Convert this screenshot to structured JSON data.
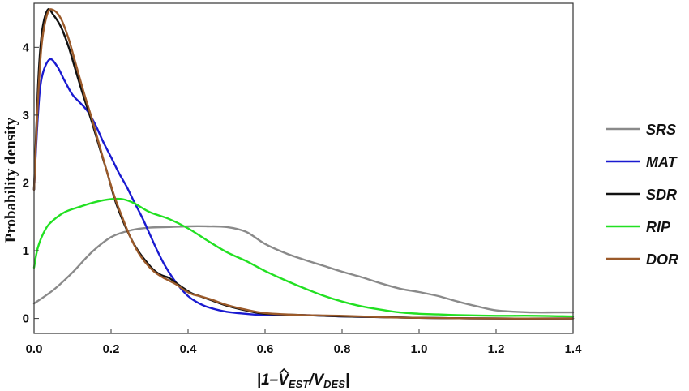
{
  "chart_data": {
    "type": "line",
    "title": "",
    "ylabel": "Probability density",
    "xlabel": {
      "prefix": "|1–",
      "hat_var": "V",
      "hat_sub": "EST",
      "slash": "/V",
      "den_sub": "DES",
      "suffix": "|"
    },
    "xlim": [
      0,
      1.4
    ],
    "ylim": [
      -0.22,
      4.65
    ],
    "x_ticks": [
      0.0,
      0.2,
      0.4,
      0.6,
      0.8,
      1.0,
      1.2,
      1.4
    ],
    "x_tick_labels": [
      "0.0",
      "0.2",
      "0.4",
      "0.6",
      "0.8",
      "1.0",
      "1.2",
      "1.4"
    ],
    "y_ticks": [
      0,
      1,
      2,
      3,
      4
    ],
    "y_tick_labels": [
      "0",
      "1",
      "2",
      "3",
      "4"
    ],
    "grid": false,
    "legend_position": "right",
    "series": [
      {
        "name": "SRS",
        "color": "#8a8a8a",
        "points": [
          [
            0,
            0.22
          ],
          [
            0.05,
            0.42
          ],
          [
            0.1,
            0.68
          ],
          [
            0.15,
            0.98
          ],
          [
            0.2,
            1.2
          ],
          [
            0.25,
            1.3
          ],
          [
            0.3,
            1.34
          ],
          [
            0.35,
            1.35
          ],
          [
            0.4,
            1.36
          ],
          [
            0.45,
            1.36
          ],
          [
            0.5,
            1.35
          ],
          [
            0.55,
            1.28
          ],
          [
            0.6,
            1.1
          ],
          [
            0.65,
            0.97
          ],
          [
            0.7,
            0.87
          ],
          [
            0.75,
            0.78
          ],
          [
            0.8,
            0.69
          ],
          [
            0.85,
            0.61
          ],
          [
            0.9,
            0.52
          ],
          [
            0.95,
            0.44
          ],
          [
            1.0,
            0.39
          ],
          [
            1.05,
            0.33
          ],
          [
            1.1,
            0.25
          ],
          [
            1.15,
            0.18
          ],
          [
            1.2,
            0.12
          ],
          [
            1.25,
            0.1
          ],
          [
            1.3,
            0.09
          ],
          [
            1.35,
            0.09
          ],
          [
            1.4,
            0.09
          ]
        ]
      },
      {
        "name": "MAT",
        "color": "#1a1ad0",
        "points": [
          [
            0,
            1.9
          ],
          [
            0.01,
            3.0
          ],
          [
            0.02,
            3.55
          ],
          [
            0.04,
            3.82
          ],
          [
            0.06,
            3.72
          ],
          [
            0.08,
            3.5
          ],
          [
            0.1,
            3.3
          ],
          [
            0.12,
            3.18
          ],
          [
            0.14,
            3.05
          ],
          [
            0.16,
            2.85
          ],
          [
            0.18,
            2.6
          ],
          [
            0.2,
            2.38
          ],
          [
            0.22,
            2.15
          ],
          [
            0.24,
            1.95
          ],
          [
            0.26,
            1.72
          ],
          [
            0.28,
            1.5
          ],
          [
            0.3,
            1.25
          ],
          [
            0.32,
            1.0
          ],
          [
            0.34,
            0.78
          ],
          [
            0.36,
            0.6
          ],
          [
            0.38,
            0.45
          ],
          [
            0.4,
            0.33
          ],
          [
            0.42,
            0.25
          ],
          [
            0.45,
            0.17
          ],
          [
            0.5,
            0.1
          ],
          [
            0.55,
            0.07
          ],
          [
            0.6,
            0.05
          ],
          [
            0.7,
            0.05
          ],
          [
            0.8,
            0.03
          ],
          [
            0.9,
            0.02
          ],
          [
            1.0,
            0.01
          ],
          [
            1.2,
            0.0
          ],
          [
            1.4,
            0.0
          ]
        ]
      },
      {
        "name": "SDR",
        "color": "#111111",
        "points": [
          [
            0,
            1.9
          ],
          [
            0.01,
            3.4
          ],
          [
            0.02,
            4.2
          ],
          [
            0.035,
            4.55
          ],
          [
            0.05,
            4.48
          ],
          [
            0.07,
            4.3
          ],
          [
            0.09,
            4.0
          ],
          [
            0.11,
            3.62
          ],
          [
            0.13,
            3.25
          ],
          [
            0.15,
            2.9
          ],
          [
            0.17,
            2.52
          ],
          [
            0.19,
            2.15
          ],
          [
            0.21,
            1.75
          ],
          [
            0.23,
            1.45
          ],
          [
            0.25,
            1.2
          ],
          [
            0.27,
            1.0
          ],
          [
            0.29,
            0.85
          ],
          [
            0.31,
            0.72
          ],
          [
            0.33,
            0.64
          ],
          [
            0.35,
            0.6
          ],
          [
            0.37,
            0.52
          ],
          [
            0.39,
            0.44
          ],
          [
            0.41,
            0.37
          ],
          [
            0.43,
            0.33
          ],
          [
            0.46,
            0.27
          ],
          [
            0.5,
            0.19
          ],
          [
            0.55,
            0.12
          ],
          [
            0.6,
            0.07
          ],
          [
            0.7,
            0.05
          ],
          [
            0.8,
            0.03
          ],
          [
            0.9,
            0.02
          ],
          [
            1.0,
            0.01
          ],
          [
            1.2,
            0.0
          ],
          [
            1.4,
            0.0
          ]
        ]
      },
      {
        "name": "RIP",
        "color": "#22e022",
        "points": [
          [
            0,
            0.75
          ],
          [
            0.01,
            1.05
          ],
          [
            0.03,
            1.32
          ],
          [
            0.05,
            1.45
          ],
          [
            0.08,
            1.57
          ],
          [
            0.12,
            1.65
          ],
          [
            0.16,
            1.72
          ],
          [
            0.2,
            1.76
          ],
          [
            0.23,
            1.76
          ],
          [
            0.26,
            1.7
          ],
          [
            0.3,
            1.57
          ],
          [
            0.35,
            1.47
          ],
          [
            0.4,
            1.33
          ],
          [
            0.45,
            1.15
          ],
          [
            0.5,
            0.98
          ],
          [
            0.55,
            0.85
          ],
          [
            0.6,
            0.7
          ],
          [
            0.65,
            0.57
          ],
          [
            0.7,
            0.45
          ],
          [
            0.75,
            0.34
          ],
          [
            0.8,
            0.25
          ],
          [
            0.85,
            0.18
          ],
          [
            0.9,
            0.13
          ],
          [
            0.95,
            0.09
          ],
          [
            1.0,
            0.07
          ],
          [
            1.05,
            0.06
          ],
          [
            1.1,
            0.05
          ],
          [
            1.2,
            0.04
          ],
          [
            1.3,
            0.04
          ],
          [
            1.4,
            0.03
          ]
        ]
      },
      {
        "name": "DOR",
        "color": "#9b5a2a",
        "points": [
          [
            0,
            1.9
          ],
          [
            0.01,
            3.2
          ],
          [
            0.02,
            4.05
          ],
          [
            0.035,
            4.5
          ],
          [
            0.05,
            4.55
          ],
          [
            0.07,
            4.42
          ],
          [
            0.09,
            4.12
          ],
          [
            0.11,
            3.72
          ],
          [
            0.13,
            3.32
          ],
          [
            0.15,
            2.95
          ],
          [
            0.17,
            2.55
          ],
          [
            0.19,
            2.15
          ],
          [
            0.21,
            1.78
          ],
          [
            0.23,
            1.48
          ],
          [
            0.25,
            1.2
          ],
          [
            0.27,
            0.98
          ],
          [
            0.29,
            0.82
          ],
          [
            0.31,
            0.7
          ],
          [
            0.33,
            0.62
          ],
          [
            0.35,
            0.56
          ],
          [
            0.37,
            0.5
          ],
          [
            0.39,
            0.42
          ],
          [
            0.41,
            0.36
          ],
          [
            0.43,
            0.33
          ],
          [
            0.46,
            0.28
          ],
          [
            0.5,
            0.2
          ],
          [
            0.55,
            0.13
          ],
          [
            0.6,
            0.08
          ],
          [
            0.7,
            0.05
          ],
          [
            0.8,
            0.04
          ],
          [
            0.9,
            0.02
          ],
          [
            1.0,
            0.01
          ],
          [
            1.2,
            0.0
          ],
          [
            1.4,
            0.0
          ]
        ]
      }
    ]
  }
}
